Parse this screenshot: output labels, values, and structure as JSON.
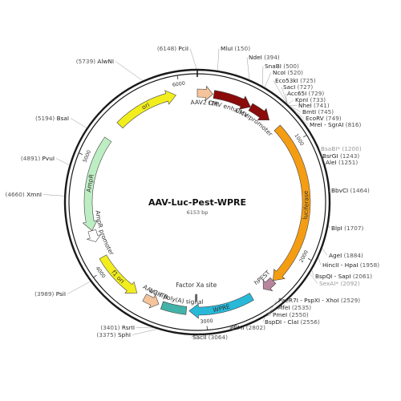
{
  "plasmid": {
    "name": "AAV-Luc-Pest-WPRE",
    "size_label": "6153 bp",
    "length": 6153
  },
  "features": [
    {
      "id": "aav2-itr-left",
      "label": "AAV2 ITR",
      "start": 0,
      "end": 141,
      "direction": "forward",
      "color": "#f5c49b"
    },
    {
      "id": "cmv-enhancer",
      "label": "CMV enhancer",
      "start": 150,
      "end": 500,
      "direction": "forward",
      "color": "#8b0a0a"
    },
    {
      "id": "cmv-promoter",
      "label": "CMV promoter",
      "start": 500,
      "end": 705,
      "direction": "forward",
      "color": "#8b0a0a"
    },
    {
      "id": "luciferase",
      "label": "luciferase",
      "start": 805,
      "end": 2325,
      "direction": "forward",
      "color": "#f59d12"
    },
    {
      "id": "hpest",
      "label": "hPEST",
      "start": 2325,
      "end": 2440,
      "direction": "forward",
      "color": "#b8859e"
    },
    {
      "id": "wpre",
      "label": "WPRE",
      "start": 2565,
      "end": 3150,
      "direction": "forward",
      "color": "#28b9d9"
    },
    {
      "id": "bgh-polya",
      "label": "bGH poly(A) signal",
      "start": 3175,
      "end": 3400,
      "direction": "none",
      "color": "#43b2a8"
    },
    {
      "id": "aav2-itr-right",
      "label": "AAV2 ITR",
      "start": 3430,
      "end": 3571,
      "direction": "reverse",
      "color": "#f5c49b"
    },
    {
      "id": "f1-ori",
      "label": "f1 ori",
      "start": 3650,
      "end": 4100,
      "direction": "reverse",
      "color": "#f2ee1e"
    },
    {
      "id": "ampr-promoter",
      "label": "AmpR promoter",
      "start": 4250,
      "end": 4355,
      "direction": "reverse",
      "color": "#ffffff"
    },
    {
      "id": "ampr",
      "label": "AmpR",
      "start": 4355,
      "end": 5215,
      "direction": "reverse",
      "color": "#bdeec3"
    },
    {
      "id": "ori",
      "label": "ori",
      "start": 5380,
      "end": 5960,
      "direction": "forward",
      "color": "#f2ee1e"
    }
  ],
  "marker": {
    "label": "Factor Xa site",
    "position": 3088
  },
  "ticks": [
    {
      "pos": 1000,
      "label": "1000"
    },
    {
      "pos": 2000,
      "label": "2000"
    },
    {
      "pos": 3000,
      "label": "3000"
    },
    {
      "pos": 4000,
      "label": "4000"
    },
    {
      "pos": 5000,
      "label": "5000"
    },
    {
      "pos": 6000,
      "label": "6000"
    }
  ],
  "sites": [
    {
      "name": "PciI",
      "pos": "(6148)",
      "side": "left",
      "grey": false
    },
    {
      "name": "MluI",
      "pos": "(150)",
      "side": "right",
      "grey": false
    },
    {
      "name": "NdeI",
      "pos": "(394)",
      "side": "right",
      "grey": false
    },
    {
      "name": "SnaBI",
      "pos": "(500)",
      "side": "right",
      "grey": false
    },
    {
      "name": "NcoI",
      "pos": "(520)",
      "side": "right",
      "grey": false
    },
    {
      "name": "Eco53kI",
      "pos": "(725)",
      "side": "right",
      "grey": false
    },
    {
      "name": "SacI",
      "pos": "(727)",
      "side": "right",
      "grey": false
    },
    {
      "name": "Acc65I",
      "pos": "(729)",
      "side": "right",
      "grey": false
    },
    {
      "name": "KpnI",
      "pos": "(733)",
      "side": "right",
      "grey": false
    },
    {
      "name": "NheI",
      "pos": "(741)",
      "side": "right",
      "grey": false
    },
    {
      "name": "BmtI",
      "pos": "(745)",
      "side": "right",
      "grey": false
    },
    {
      "name": "EcoRV",
      "pos": "(749)",
      "side": "right",
      "grey": false
    },
    {
      "name": "MreI - SgrAI",
      "pos": "(816)",
      "side": "right",
      "grey": false
    },
    {
      "name": "BsaBI*",
      "pos": "(1200)",
      "side": "right",
      "grey": true
    },
    {
      "name": "BsrGI",
      "pos": "(1243)",
      "side": "right",
      "grey": false
    },
    {
      "name": "AleI",
      "pos": "(1251)",
      "side": "right",
      "grey": false
    },
    {
      "name": "BbvCI",
      "pos": "(1464)",
      "side": "right",
      "grey": false
    },
    {
      "name": "BlpI",
      "pos": "(1707)",
      "side": "right",
      "grey": false
    },
    {
      "name": "AgeI",
      "pos": "(1884)",
      "side": "right",
      "grey": false
    },
    {
      "name": "HincII - HpaI",
      "pos": "(1958)",
      "side": "right",
      "grey": false
    },
    {
      "name": "BspQI - SapI",
      "pos": "(2061)",
      "side": "right",
      "grey": false
    },
    {
      "name": "SexAI*",
      "pos": "(2092)",
      "side": "right",
      "grey": true
    },
    {
      "name": "PaeR7I - PspXI - XhoI",
      "pos": "(2529)",
      "side": "right",
      "grey": false
    },
    {
      "name": "MfeI",
      "pos": "(2535)",
      "side": "right",
      "grey": false
    },
    {
      "name": "PmeI",
      "pos": "(2550)",
      "side": "right",
      "grey": false
    },
    {
      "name": "BspDI - ClaI",
      "pos": "(2556)",
      "side": "right",
      "grey": false
    },
    {
      "name": "PflMI",
      "pos": "(2802)",
      "side": "right",
      "grey": false
    },
    {
      "name": "SacII",
      "pos": "(3064)",
      "side": "right",
      "grey": false
    },
    {
      "name": "RsrII",
      "pos": "(3401)",
      "side": "left",
      "grey": false
    },
    {
      "name": "SphI",
      "pos": "(3375)",
      "side": "left",
      "grey": false
    },
    {
      "name": "PsiI",
      "pos": "(3989)",
      "side": "left",
      "grey": false
    },
    {
      "name": "XmnI",
      "pos": "(4660)",
      "side": "left",
      "grey": false
    },
    {
      "name": "PvuI",
      "pos": "(4891)",
      "side": "left",
      "grey": false
    },
    {
      "name": "BsaI",
      "pos": "(5194)",
      "side": "left",
      "grey": false
    },
    {
      "name": "AlwNI",
      "pos": "(5739)",
      "side": "left",
      "grey": false
    }
  ]
}
